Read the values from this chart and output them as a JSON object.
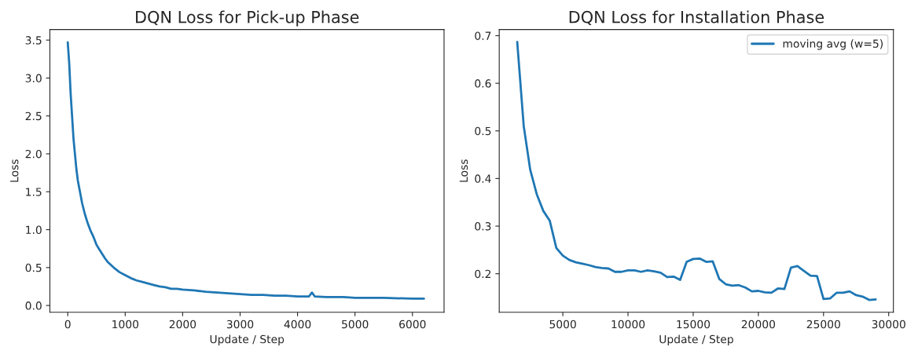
{
  "chart_data": [
    {
      "type": "line",
      "title": "DQN Loss for Pick-up Phase",
      "xlabel": "Update / Step",
      "ylabel": "Loss",
      "xlim": [
        -311,
        6550
      ],
      "ylim": [
        -0.09,
        3.64
      ],
      "xticks": [
        0,
        1000,
        2000,
        3000,
        4000,
        5000,
        6000
      ],
      "yticks": [
        {
          "value": 0,
          "label": "0.0"
        },
        {
          "value": 0.5,
          "label": "0.5"
        },
        {
          "value": 1,
          "label": "1.0"
        },
        {
          "value": 1.5,
          "label": "1.5"
        },
        {
          "value": 2,
          "label": "2.0"
        },
        {
          "value": 2.5,
          "label": "2.5"
        },
        {
          "value": 3,
          "label": "3.0"
        },
        {
          "value": 3.5,
          "label": "3.5"
        }
      ],
      "grid": false,
      "legend": false,
      "series": [
        {
          "color": "#1f77b4",
          "x": [
            0,
            25,
            50,
            75,
            100,
            125,
            150,
            175,
            200,
            250,
            300,
            350,
            400,
            450,
            500,
            550,
            600,
            650,
            700,
            800,
            900,
            1000,
            1100,
            1200,
            1300,
            1400,
            1500,
            1600,
            1700,
            1800,
            1900,
            2000,
            2200,
            2400,
            2600,
            2800,
            3000,
            3200,
            3400,
            3600,
            3800,
            4000,
            4200,
            4250,
            4300,
            4500,
            4800,
            5000,
            5500,
            6000,
            6200
          ],
          "values": [
            3.47,
            3.2,
            2.8,
            2.5,
            2.2,
            2.0,
            1.8,
            1.65,
            1.55,
            1.35,
            1.2,
            1.08,
            0.98,
            0.9,
            0.8,
            0.74,
            0.68,
            0.62,
            0.57,
            0.5,
            0.44,
            0.4,
            0.36,
            0.33,
            0.31,
            0.29,
            0.27,
            0.25,
            0.24,
            0.22,
            0.22,
            0.21,
            0.2,
            0.18,
            0.17,
            0.16,
            0.15,
            0.14,
            0.14,
            0.13,
            0.13,
            0.12,
            0.12,
            0.17,
            0.12,
            0.11,
            0.11,
            0.1,
            0.1,
            0.09,
            0.09
          ]
        }
      ]
    },
    {
      "type": "line",
      "title": "DQN Loss for Installation Phase",
      "xlabel": "Update / Step",
      "ylabel": "Loss",
      "xlim": [
        120,
        30360
      ],
      "ylim": [
        0.119,
        0.713
      ],
      "xticks": [
        5000,
        10000,
        15000,
        20000,
        25000,
        30000
      ],
      "yticks": [
        0.2,
        0.3,
        0.4,
        0.5,
        0.6,
        0.7
      ],
      "grid": false,
      "legend": "top right",
      "series": [
        {
          "name": "moving avg (w=5)",
          "color": "#1f77b4",
          "x": [
            1500,
            2000,
            2500,
            3000,
            3500,
            4000,
            4500,
            5000,
            5500,
            6000,
            6500,
            7000,
            7500,
            8000,
            8500,
            9000,
            9500,
            10000,
            10500,
            11000,
            11500,
            12000,
            12500,
            13000,
            13500,
            14000,
            14500,
            15000,
            15500,
            16000,
            16500,
            17000,
            17500,
            18000,
            18500,
            19000,
            19500,
            20000,
            20500,
            21000,
            21500,
            22000,
            22500,
            23000,
            23500,
            24000,
            24500,
            25000,
            25500,
            26000,
            26500,
            27000,
            27500,
            28000,
            28500,
            29000
          ],
          "values": [
            0.687,
            0.51,
            0.418,
            0.367,
            0.332,
            0.311,
            0.254,
            0.238,
            0.229,
            0.224,
            0.221,
            0.218,
            0.214,
            0.212,
            0.211,
            0.204,
            0.204,
            0.207,
            0.207,
            0.204,
            0.207,
            0.205,
            0.202,
            0.193,
            0.194,
            0.187,
            0.225,
            0.231,
            0.232,
            0.225,
            0.226,
            0.189,
            0.178,
            0.175,
            0.176,
            0.171,
            0.163,
            0.164,
            0.161,
            0.16,
            0.169,
            0.168,
            0.213,
            0.216,
            0.206,
            0.196,
            0.195,
            0.147,
            0.148,
            0.16,
            0.16,
            0.163,
            0.155,
            0.152,
            0.145,
            0.146
          ]
        }
      ]
    }
  ]
}
